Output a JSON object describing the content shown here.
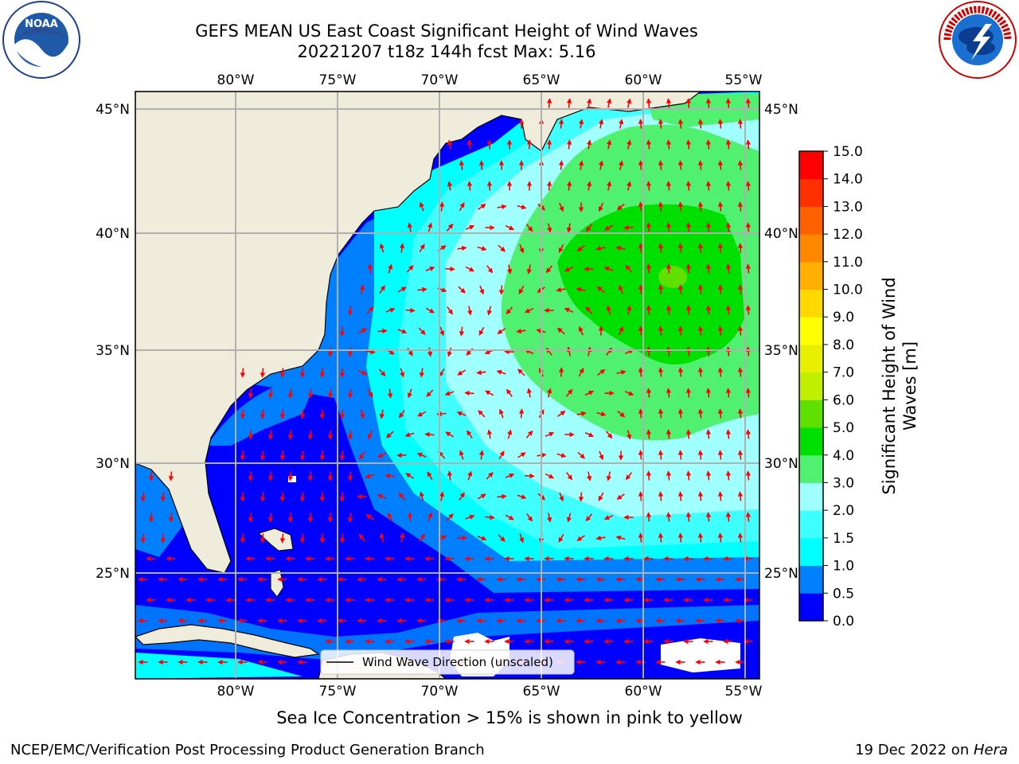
{
  "title": {
    "line1": "GEFS MEAN US East Coast Significant Height of Wind Waves",
    "line2": "20221207 t18z 144h fcst   Max: 5.16"
  },
  "map": {
    "lon_labels": [
      "80°W",
      "75°W",
      "70°W",
      "65°W",
      "60°W",
      "55°W"
    ],
    "lat_labels": [
      "45°N",
      "40°N",
      "35°N",
      "30°N",
      "25°N"
    ],
    "legend_label": "Wind Wave Direction (unscaled)",
    "colors": {
      "land": "#efecdc",
      "arrow": "#ff0000",
      "grid": "#b0b0b0",
      "coast": "#000000"
    }
  },
  "colorbar": {
    "label_line1": "Significant Height of Wind",
    "label_line2": "Waves [m]",
    "ticks": [
      "0.0",
      "0.5",
      "1.0",
      "1.5",
      "2.0",
      "3.0",
      "4.0",
      "5.0",
      "6.0",
      "7.0",
      "8.0",
      "9.0",
      "10.0",
      "11.0",
      "12.0",
      "13.0",
      "14.0",
      "15.0"
    ],
    "colors": [
      "#0000ff",
      "#0080ff",
      "#00ffff",
      "#40ffff",
      "#a0ffff",
      "#50f070",
      "#00e000",
      "#60e000",
      "#c0f000",
      "#e8f000",
      "#ffff00",
      "#ffd800",
      "#ffb000",
      "#ff8800",
      "#ff6000",
      "#ff3000",
      "#ff0000"
    ]
  },
  "logos": {
    "left_text": "NOAA",
    "right_text": "NATIONAL WEATHER SERVICE"
  },
  "footer": {
    "note": "Sea Ice Concentration > 15% is shown in pink to yellow",
    "credit": "NCEP/EMC/Verification Post Processing Product Generation Branch",
    "stamp_date": "19 Dec 2022 on ",
    "stamp_host": "Hera"
  }
}
